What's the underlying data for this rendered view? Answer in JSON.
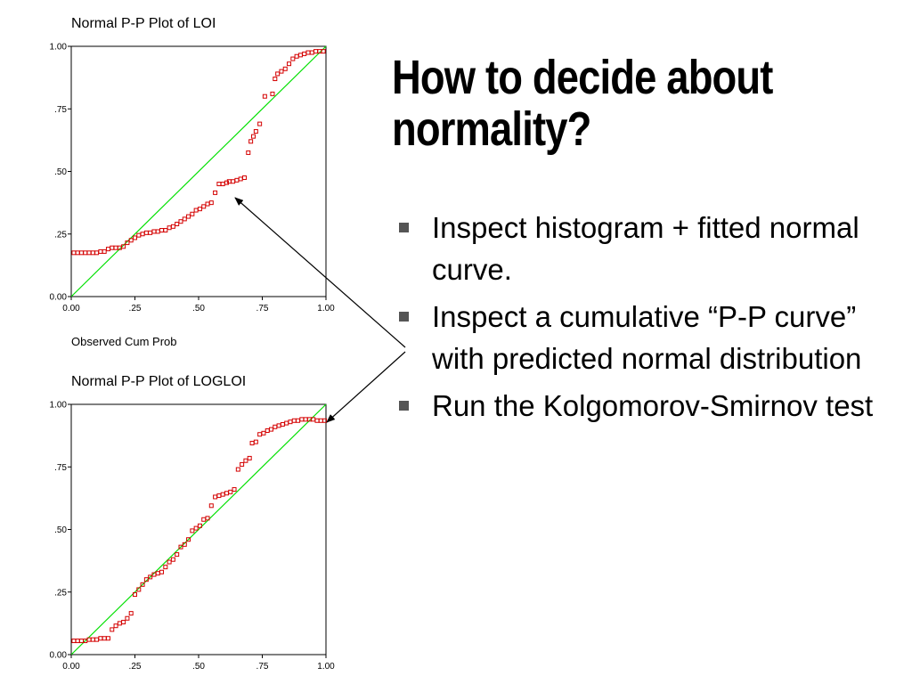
{
  "slide": {
    "heading": "How to decide about normality?",
    "bullets": [
      "Inspect histogram + fitted normal curve.",
      "Inspect a cumulative “P-P curve” with predicted normal distribution",
      "Run the Kolgomorov-Smirnov test"
    ]
  },
  "colors": {
    "reference_line": "#00e000",
    "points": "#d40000",
    "axis": "#000000"
  },
  "chart_data": [
    {
      "type": "scatter",
      "title": "Normal P-P Plot of LOI",
      "xlabel": "Observed Cum Prob",
      "ylabel": "",
      "xlim": [
        0,
        1
      ],
      "ylim": [
        0,
        1
      ],
      "x_ticks": [
        "0.00",
        ".25",
        ".50",
        ".75",
        "1.00"
      ],
      "y_ticks": [
        "0.00",
        ".25",
        ".50",
        ".75",
        "1.00"
      ],
      "reference_line": [
        [
          0,
          0
        ],
        [
          1,
          1
        ]
      ],
      "series": [
        {
          "x": [
            0.01,
            0.025,
            0.04,
            0.055,
            0.07,
            0.085,
            0.1,
            0.115,
            0.13,
            0.145,
            0.16,
            0.175,
            0.19,
            0.205,
            0.22,
            0.235,
            0.25,
            0.265,
            0.28,
            0.295,
            0.31,
            0.325,
            0.34,
            0.355,
            0.37,
            0.385,
            0.4,
            0.415,
            0.43,
            0.445,
            0.46,
            0.475,
            0.49,
            0.505,
            0.52,
            0.535,
            0.55,
            0.565,
            0.58,
            0.595,
            0.61,
            0.62,
            0.635,
            0.65,
            0.665,
            0.68,
            0.695,
            0.705,
            0.715,
            0.725,
            0.74,
            0.76,
            0.79,
            0.8,
            0.81,
            0.825,
            0.84,
            0.855,
            0.87,
            0.885,
            0.9,
            0.915,
            0.93,
            0.945,
            0.96,
            0.975,
            0.99
          ],
          "y": [
            0.175,
            0.175,
            0.175,
            0.175,
            0.175,
            0.175,
            0.175,
            0.18,
            0.18,
            0.19,
            0.195,
            0.195,
            0.195,
            0.2,
            0.215,
            0.225,
            0.235,
            0.245,
            0.25,
            0.255,
            0.255,
            0.26,
            0.26,
            0.265,
            0.265,
            0.275,
            0.28,
            0.29,
            0.3,
            0.31,
            0.32,
            0.33,
            0.345,
            0.35,
            0.36,
            0.37,
            0.375,
            0.415,
            0.45,
            0.45,
            0.455,
            0.46,
            0.46,
            0.465,
            0.47,
            0.475,
            0.575,
            0.62,
            0.64,
            0.66,
            0.69,
            0.8,
            0.81,
            0.87,
            0.89,
            0.9,
            0.91,
            0.93,
            0.95,
            0.96,
            0.965,
            0.97,
            0.975,
            0.975,
            0.98,
            0.98,
            0.98
          ]
        }
      ]
    },
    {
      "type": "scatter",
      "title": "Normal P-P Plot of LOGLOI",
      "xlabel": "",
      "ylabel": "",
      "xlim": [
        0,
        1
      ],
      "ylim": [
        0,
        1
      ],
      "x_ticks": [
        "0.00",
        ".25",
        ".50",
        ".75",
        "1.00"
      ],
      "y_ticks": [
        "0.00",
        ".25",
        ".50",
        ".75",
        "1.00"
      ],
      "reference_line": [
        [
          0,
          0
        ],
        [
          1,
          1
        ]
      ],
      "series": [
        {
          "x": [
            0.01,
            0.025,
            0.04,
            0.055,
            0.07,
            0.085,
            0.1,
            0.115,
            0.13,
            0.145,
            0.16,
            0.175,
            0.19,
            0.205,
            0.22,
            0.235,
            0.25,
            0.265,
            0.28,
            0.295,
            0.31,
            0.325,
            0.34,
            0.355,
            0.37,
            0.385,
            0.4,
            0.415,
            0.43,
            0.445,
            0.46,
            0.475,
            0.49,
            0.505,
            0.52,
            0.535,
            0.55,
            0.565,
            0.58,
            0.595,
            0.61,
            0.625,
            0.64,
            0.655,
            0.67,
            0.685,
            0.7,
            0.71,
            0.725,
            0.74,
            0.755,
            0.77,
            0.785,
            0.8,
            0.815,
            0.83,
            0.845,
            0.86,
            0.875,
            0.89,
            0.905,
            0.92,
            0.935,
            0.95,
            0.965,
            0.98,
            0.995
          ],
          "y": [
            0.055,
            0.055,
            0.055,
            0.055,
            0.06,
            0.06,
            0.06,
            0.065,
            0.065,
            0.065,
            0.1,
            0.115,
            0.125,
            0.13,
            0.145,
            0.165,
            0.24,
            0.26,
            0.28,
            0.3,
            0.31,
            0.32,
            0.325,
            0.33,
            0.35,
            0.37,
            0.38,
            0.4,
            0.43,
            0.44,
            0.46,
            0.495,
            0.505,
            0.515,
            0.54,
            0.545,
            0.595,
            0.63,
            0.635,
            0.64,
            0.645,
            0.65,
            0.66,
            0.74,
            0.76,
            0.775,
            0.785,
            0.845,
            0.85,
            0.88,
            0.885,
            0.895,
            0.9,
            0.91,
            0.915,
            0.92,
            0.925,
            0.93,
            0.935,
            0.935,
            0.94,
            0.94,
            0.94,
            0.94,
            0.935,
            0.935,
            0.935
          ]
        }
      ]
    }
  ]
}
